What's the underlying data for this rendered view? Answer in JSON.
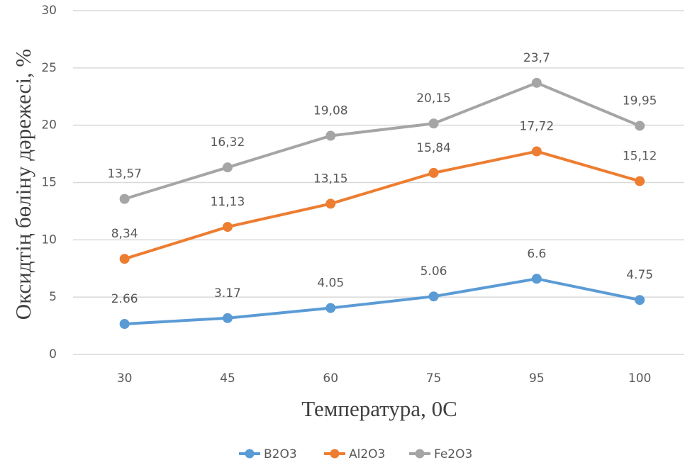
{
  "chart_data": {
    "type": "line",
    "x_label": "Температура, 0С",
    "y_label": "Оксидтің бөлiну дәрежесi, %",
    "categories": [
      "30",
      "45",
      "60",
      "75",
      "95",
      "100"
    ],
    "series": [
      {
        "name": "B2O3",
        "color": "#5b9bd5",
        "values": [
          2.66,
          3.17,
          4.05,
          5.06,
          6.6,
          4.75
        ]
      },
      {
        "name": "Al2O3",
        "color": "#ed7d31",
        "values": [
          8.34,
          11.13,
          13.15,
          15.84,
          17.72,
          15.12
        ],
        "value_labels": [
          "8,34",
          "11,13",
          "13,15",
          "15,84",
          "17,72",
          "15,12"
        ]
      },
      {
        "name": "Fe2O3",
        "color": "#a5a5a5",
        "values": [
          13.57,
          16.32,
          19.08,
          20.15,
          23.7,
          19.95
        ],
        "value_labels": [
          "13,57",
          "16,32",
          "19,08",
          "20,15",
          "23,7",
          "19,95"
        ]
      }
    ],
    "ylim": [
      0,
      30
    ],
    "yticks": [
      0,
      5,
      10,
      15,
      20,
      25,
      30
    ],
    "grid": true,
    "legend": "bottom"
  }
}
